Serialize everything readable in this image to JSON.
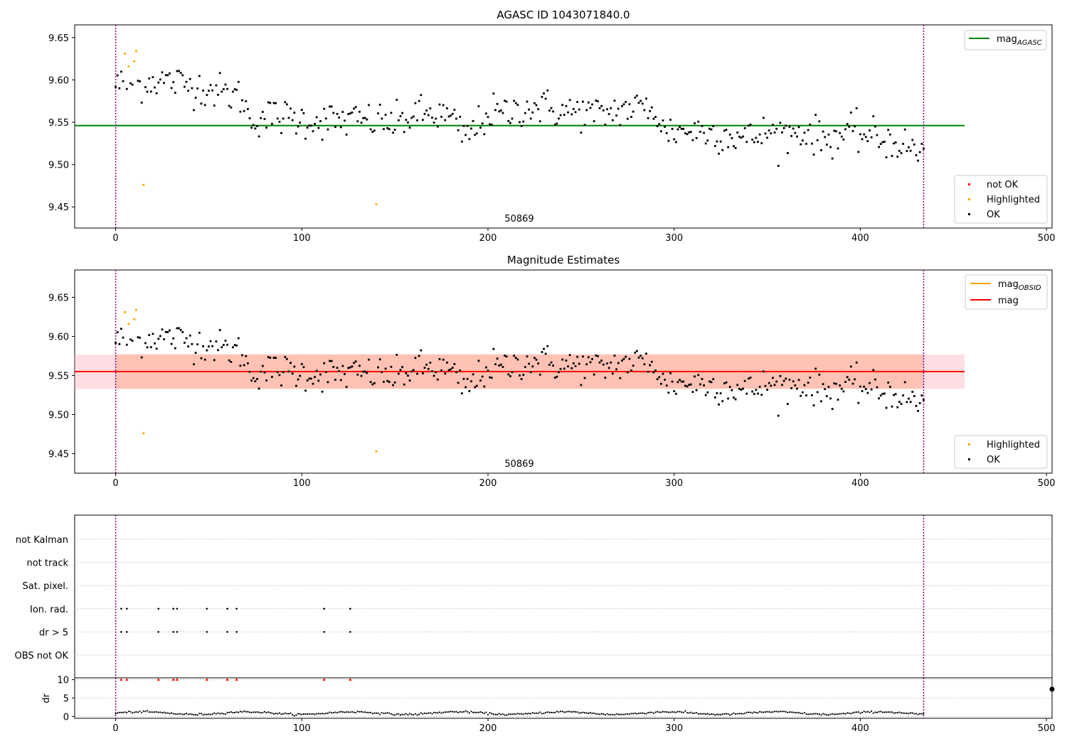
{
  "charts": [
    {
      "id": "top",
      "title": "AGASC ID 1043071840.0",
      "type": "scatter",
      "xlim": [
        -22,
        503
      ],
      "ylim": [
        9.425,
        9.665
      ],
      "xticks": [
        "0",
        "100",
        "200",
        "300",
        "400",
        "500"
      ],
      "yticks": [
        "9.45",
        "9.50",
        "9.55",
        "9.60",
        "9.65"
      ],
      "obsid_label": "50869",
      "obs_bounds": [
        0,
        434
      ],
      "lines": [
        {
          "name": "mag_AGASC",
          "color": "#008000",
          "y": 9.546,
          "x": [
            -22,
            456
          ]
        }
      ],
      "legend_lines": [
        {
          "label": "mag",
          "sub": "AGASC",
          "color": "#008000"
        }
      ],
      "legend_points": [
        {
          "label": "not OK",
          "color": "#ff0000"
        },
        {
          "label": "Highlighted",
          "color": "#ffa500"
        },
        {
          "label": "OK",
          "color": "#000000"
        }
      ]
    },
    {
      "id": "mid",
      "title": "Magnitude Estimates",
      "type": "scatter",
      "xlim": [
        -22,
        503
      ],
      "ylim": [
        9.425,
        9.685
      ],
      "xticks": [
        "0",
        "100",
        "200",
        "300",
        "400",
        "500"
      ],
      "yticks": [
        "9.45",
        "9.50",
        "9.55",
        "9.60",
        "9.65"
      ],
      "obsid_label": "50869",
      "obs_bounds": [
        0,
        434
      ],
      "mag": 9.555,
      "mag_band": [
        9.533,
        9.577
      ],
      "obs_band_color": "#ffa07a",
      "total_band_color": "#ffb6c1",
      "mag_obsid_color": "#ffa500",
      "mag_color": "#ff0000",
      "legend_lines": [
        {
          "label": "mag",
          "sub": "OBSID",
          "color": "#ffa500"
        },
        {
          "label": "mag",
          "sub": "",
          "color": "#ff0000"
        }
      ],
      "legend_points": [
        {
          "label": "Highlighted",
          "color": "#ffa500"
        },
        {
          "label": "OK",
          "color": "#000000"
        }
      ]
    },
    {
      "id": "flags",
      "type": "scatter",
      "xlim": [
        -22,
        503
      ],
      "categories": [
        "not Kalman",
        "not track",
        "Sat. pixel.",
        "Ion. rad.",
        "dr > 5",
        "OBS not OK"
      ],
      "flag_x": [
        3,
        6,
        23,
        31,
        33,
        49,
        60,
        65,
        112,
        126
      ],
      "flag_rows": [
        "Ion. rad.",
        "dr > 5"
      ]
    },
    {
      "id": "dr",
      "type": "scatter",
      "xlim": [
        -22,
        503
      ],
      "ylim": [
        -0.5,
        10.5
      ],
      "ylabel": "dr",
      "xticks": [
        "0",
        "100",
        "200",
        "300",
        "400",
        "500"
      ],
      "yticks": [
        "0",
        "5",
        "10"
      ],
      "clipped_x": [
        3,
        6,
        23,
        31,
        33,
        49,
        60,
        65,
        112,
        126
      ],
      "clipped_value": 10
    }
  ],
  "chart_data": {
    "type": "scatter",
    "x_count": 435,
    "mag_keypoints": [
      [
        0,
        9.595
      ],
      [
        10,
        9.593
      ],
      [
        20,
        9.6
      ],
      [
        30,
        9.598
      ],
      [
        40,
        9.594
      ],
      [
        50,
        9.59
      ],
      [
        60,
        9.583
      ],
      [
        68,
        9.58
      ],
      [
        72,
        9.552
      ],
      [
        80,
        9.557
      ],
      [
        90,
        9.556
      ],
      [
        100,
        9.553
      ],
      [
        110,
        9.552
      ],
      [
        120,
        9.552
      ],
      [
        130,
        9.552
      ],
      [
        140,
        9.552
      ],
      [
        150,
        9.548
      ],
      [
        160,
        9.558
      ],
      [
        170,
        9.56
      ],
      [
        180,
        9.555
      ],
      [
        185,
        9.538
      ],
      [
        190,
        9.535
      ],
      [
        200,
        9.56
      ],
      [
        210,
        9.56
      ],
      [
        220,
        9.568
      ],
      [
        230,
        9.568
      ],
      [
        240,
        9.562
      ],
      [
        250,
        9.563
      ],
      [
        260,
        9.558
      ],
      [
        270,
        9.565
      ],
      [
        280,
        9.567
      ],
      [
        290,
        9.566
      ],
      [
        293,
        9.54
      ],
      [
        300,
        9.54
      ],
      [
        310,
        9.54
      ],
      [
        320,
        9.538
      ],
      [
        330,
        9.535
      ],
      [
        340,
        9.53
      ],
      [
        350,
        9.538
      ],
      [
        360,
        9.536
      ],
      [
        370,
        9.54
      ],
      [
        380,
        9.53
      ],
      [
        390,
        9.535
      ],
      [
        400,
        9.537
      ],
      [
        410,
        9.53
      ],
      [
        420,
        9.526
      ],
      [
        430,
        9.515
      ],
      [
        434,
        9.515
      ]
    ],
    "highlighted": [
      {
        "x": 5,
        "y": 9.631
      },
      {
        "x": 7,
        "y": 9.616
      },
      {
        "x": 10,
        "y": 9.622
      },
      {
        "x": 11,
        "y": 9.634
      },
      {
        "x": 15,
        "y": 9.476
      },
      {
        "x": 140,
        "y": 9.453
      }
    ],
    "dr_mean": 0.9,
    "mag_agasc": 9.546,
    "mag": 9.555
  }
}
